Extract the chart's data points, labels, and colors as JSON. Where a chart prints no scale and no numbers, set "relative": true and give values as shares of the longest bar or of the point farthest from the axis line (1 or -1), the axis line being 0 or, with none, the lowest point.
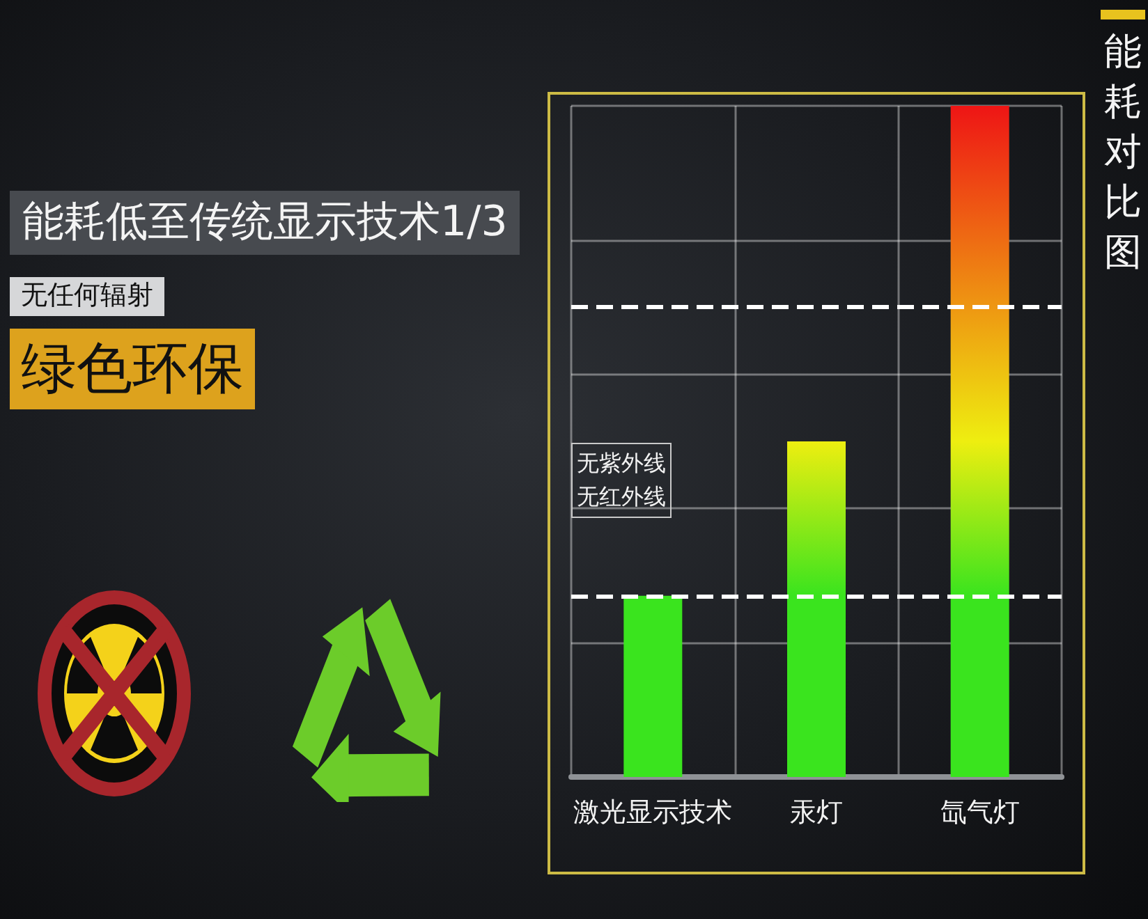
{
  "chart_data": {
    "type": "bar",
    "title": "能耗对比图",
    "categories": [
      "激光显示技术",
      "汞灯",
      "氙气灯"
    ],
    "values": [
      0.27,
      0.5,
      1
    ],
    "colors": [
      "#3ae41e",
      "#eeee10",
      "#ee1515"
    ],
    "relative": true,
    "grid": true,
    "ref_lines": [
      {
        "axis": "y",
        "value": 0.27,
        "color": "#ffffff",
        "line_style": "dashed"
      },
      {
        "axis": "y",
        "value": 0.7,
        "color": "#ffffff",
        "line_style": "dashed"
      }
    ],
    "annotations": [
      "能耗低至传统显示技术1/3",
      "无任何辐射",
      "绿色环保",
      "无紫外线无红外线"
    ]
  }
}
